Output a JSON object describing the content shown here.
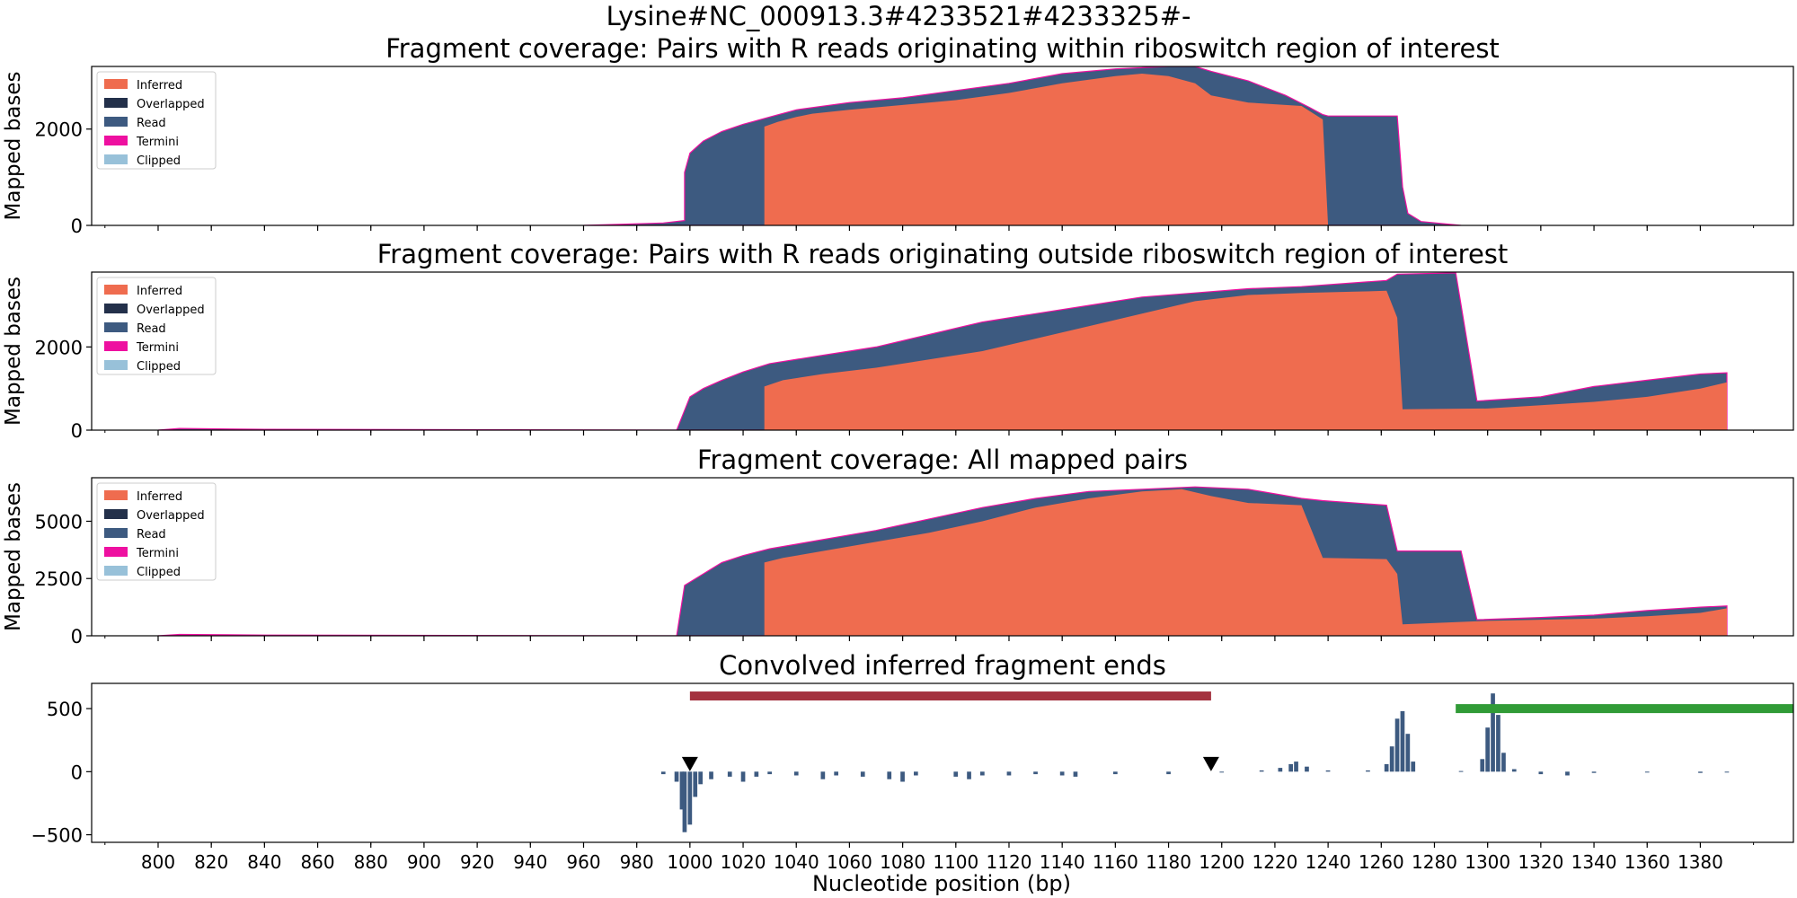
{
  "figure": {
    "suptitle": "Lysine#NC_000913.3#4233521#4233325#-",
    "xlabel": "Nucleotide position (bp)",
    "xlim": [
      775,
      1415
    ],
    "x_ticks": [
      800,
      820,
      840,
      860,
      880,
      900,
      920,
      940,
      960,
      980,
      1000,
      1020,
      1040,
      1060,
      1080,
      1100,
      1120,
      1140,
      1160,
      1180,
      1200,
      1220,
      1240,
      1260,
      1280,
      1300,
      1320,
      1340,
      1360,
      1380
    ]
  },
  "legend": {
    "entries": [
      {
        "label": "Inferred",
        "color": "#ef6c4f"
      },
      {
        "label": "Overlapped",
        "color": "#23304a"
      },
      {
        "label": "Read",
        "color": "#3d5a80"
      },
      {
        "label": "Termini",
        "color": "#ee10a0"
      },
      {
        "label": "Clipped",
        "color": "#98c1d9"
      }
    ]
  },
  "chart_data": [
    {
      "type": "area",
      "title": "Fragment coverage: Pairs with R reads originating within riboswitch region of interest",
      "ylabel": "Mapped bases",
      "ylim": [
        0,
        3300
      ],
      "y_ticks": [
        0,
        2000
      ],
      "series": [
        {
          "name": "Inferred",
          "color": "#ef6c4f",
          "points": [
            [
              1028,
              0
            ],
            [
              1028,
              2050
            ],
            [
              1033,
              2150
            ],
            [
              1040,
              2250
            ],
            [
              1046,
              2320
            ],
            [
              1060,
              2400
            ],
            [
              1080,
              2500
            ],
            [
              1100,
              2600
            ],
            [
              1120,
              2750
            ],
            [
              1140,
              2950
            ],
            [
              1160,
              3100
            ],
            [
              1170,
              3150
            ],
            [
              1180,
              3100
            ],
            [
              1190,
              2950
            ],
            [
              1196,
              2700
            ],
            [
              1210,
              2550
            ],
            [
              1230,
              2480
            ],
            [
              1238,
              2200
            ],
            [
              1240,
              0
            ]
          ]
        },
        {
          "name": "Read",
          "color": "#3d5a80",
          "points": [
            [
              960,
              0
            ],
            [
              990,
              50
            ],
            [
              998,
              100
            ],
            [
              998,
              1100
            ],
            [
              1000,
              1500
            ],
            [
              1005,
              1750
            ],
            [
              1012,
              1950
            ],
            [
              1020,
              2100
            ],
            [
              1030,
              2250
            ],
            [
              1040,
              2400
            ],
            [
              1060,
              2550
            ],
            [
              1080,
              2650
            ],
            [
              1100,
              2800
            ],
            [
              1120,
              2950
            ],
            [
              1140,
              3150
            ],
            [
              1160,
              3250
            ],
            [
              1180,
              3300
            ],
            [
              1190,
              3300
            ],
            [
              1196,
              3200
            ],
            [
              1210,
              3000
            ],
            [
              1224,
              2700
            ],
            [
              1233,
              2450
            ],
            [
              1238,
              2300
            ],
            [
              1240,
              2270
            ],
            [
              1266,
              2270
            ],
            [
              1268,
              800
            ],
            [
              1270,
              250
            ],
            [
              1275,
              80
            ],
            [
              1290,
              0
            ]
          ]
        }
      ]
    },
    {
      "type": "area",
      "title": "Fragment coverage: Pairs with R reads originating outside riboswitch region of interest",
      "ylabel": "Mapped bases",
      "ylim": [
        0,
        3800
      ],
      "y_ticks": [
        0,
        2000
      ],
      "series": [
        {
          "name": "Inferred",
          "color": "#ef6c4f",
          "points": [
            [
              1028,
              0
            ],
            [
              1028,
              1050
            ],
            [
              1035,
              1200
            ],
            [
              1050,
              1350
            ],
            [
              1070,
              1500
            ],
            [
              1090,
              1700
            ],
            [
              1110,
              1900
            ],
            [
              1130,
              2200
            ],
            [
              1150,
              2500
            ],
            [
              1170,
              2800
            ],
            [
              1190,
              3100
            ],
            [
              1210,
              3250
            ],
            [
              1230,
              3300
            ],
            [
              1250,
              3330
            ],
            [
              1262,
              3350
            ],
            [
              1266,
              2700
            ],
            [
              1268,
              500
            ],
            [
              1300,
              520
            ],
            [
              1320,
              600
            ],
            [
              1340,
              680
            ],
            [
              1360,
              800
            ],
            [
              1380,
              1000
            ],
            [
              1390,
              1150
            ],
            [
              1390,
              0
            ]
          ]
        },
        {
          "name": "Read",
          "color": "#3d5a80",
          "points": [
            [
              800,
              0
            ],
            [
              808,
              40
            ],
            [
              840,
              20
            ],
            [
              995,
              0
            ],
            [
              1000,
              800
            ],
            [
              1005,
              1000
            ],
            [
              1012,
              1200
            ],
            [
              1020,
              1400
            ],
            [
              1030,
              1600
            ],
            [
              1050,
              1800
            ],
            [
              1070,
              2000
            ],
            [
              1090,
              2300
            ],
            [
              1110,
              2600
            ],
            [
              1130,
              2800
            ],
            [
              1150,
              3000
            ],
            [
              1170,
              3200
            ],
            [
              1190,
              3300
            ],
            [
              1210,
              3400
            ],
            [
              1230,
              3450
            ],
            [
              1262,
              3600
            ],
            [
              1266,
              3750
            ],
            [
              1288,
              3780
            ],
            [
              1296,
              700
            ],
            [
              1320,
              800
            ],
            [
              1340,
              1050
            ],
            [
              1360,
              1200
            ],
            [
              1380,
              1350
            ],
            [
              1390,
              1380
            ],
            [
              1390,
              0
            ]
          ]
        }
      ]
    },
    {
      "type": "area",
      "title": "Fragment coverage: All mapped pairs",
      "ylabel": "Mapped bases",
      "ylim": [
        0,
        6900
      ],
      "y_ticks": [
        0,
        2500,
        5000
      ],
      "series": [
        {
          "name": "Inferred",
          "color": "#ef6c4f",
          "points": [
            [
              1028,
              0
            ],
            [
              1028,
              3200
            ],
            [
              1035,
              3400
            ],
            [
              1050,
              3700
            ],
            [
              1070,
              4100
            ],
            [
              1090,
              4500
            ],
            [
              1110,
              5000
            ],
            [
              1130,
              5600
            ],
            [
              1150,
              6000
            ],
            [
              1170,
              6300
            ],
            [
              1185,
              6400
            ],
            [
              1196,
              6100
            ],
            [
              1210,
              5800
            ],
            [
              1230,
              5700
            ],
            [
              1238,
              3400
            ],
            [
              1262,
              3350
            ],
            [
              1266,
              2700
            ],
            [
              1268,
              500
            ],
            [
              1300,
              650
            ],
            [
              1320,
              700
            ],
            [
              1340,
              750
            ],
            [
              1360,
              850
            ],
            [
              1380,
              1000
            ],
            [
              1390,
              1200
            ],
            [
              1390,
              0
            ]
          ]
        },
        {
          "name": "Read",
          "color": "#3d5a80",
          "points": [
            [
              800,
              0
            ],
            [
              808,
              60
            ],
            [
              840,
              30
            ],
            [
              995,
              0
            ],
            [
              998,
              2200
            ],
            [
              1005,
              2700
            ],
            [
              1012,
              3200
            ],
            [
              1020,
              3500
            ],
            [
              1030,
              3800
            ],
            [
              1050,
              4200
            ],
            [
              1070,
              4600
            ],
            [
              1090,
              5100
            ],
            [
              1110,
              5600
            ],
            [
              1130,
              6000
            ],
            [
              1150,
              6300
            ],
            [
              1170,
              6400
            ],
            [
              1190,
              6500
            ],
            [
              1210,
              6400
            ],
            [
              1230,
              6000
            ],
            [
              1238,
              5900
            ],
            [
              1262,
              5700
            ],
            [
              1266,
              3700
            ],
            [
              1290,
              3700
            ],
            [
              1296,
              700
            ],
            [
              1320,
              800
            ],
            [
              1340,
              900
            ],
            [
              1360,
              1100
            ],
            [
              1380,
              1250
            ],
            [
              1390,
              1300
            ],
            [
              1390,
              0
            ]
          ]
        }
      ]
    },
    {
      "type": "bar",
      "title": "Convolved inferred fragment ends",
      "ylim": [
        -560,
        700
      ],
      "y_ticks": [
        -500,
        0,
        500
      ],
      "series": [
        {
          "name": "Convolved ends",
          "color": "#3d5a80",
          "points": [
            [
              990,
              -20
            ],
            [
              995,
              -80
            ],
            [
              997,
              -300
            ],
            [
              998,
              -480
            ],
            [
              1000,
              -420
            ],
            [
              1002,
              -200
            ],
            [
              1004,
              -100
            ],
            [
              1008,
              -60
            ],
            [
              1015,
              -40
            ],
            [
              1020,
              -80
            ],
            [
              1025,
              -40
            ],
            [
              1030,
              -20
            ],
            [
              1040,
              -30
            ],
            [
              1050,
              -60
            ],
            [
              1055,
              -30
            ],
            [
              1065,
              -40
            ],
            [
              1075,
              -60
            ],
            [
              1080,
              -80
            ],
            [
              1085,
              -30
            ],
            [
              1100,
              -40
            ],
            [
              1105,
              -60
            ],
            [
              1110,
              -30
            ],
            [
              1120,
              -30
            ],
            [
              1130,
              -20
            ],
            [
              1140,
              -30
            ],
            [
              1145,
              -40
            ],
            [
              1160,
              -20
            ],
            [
              1180,
              -20
            ],
            [
              1200,
              0
            ],
            [
              1215,
              10
            ],
            [
              1222,
              30
            ],
            [
              1226,
              60
            ],
            [
              1228,
              80
            ],
            [
              1232,
              40
            ],
            [
              1240,
              10
            ],
            [
              1255,
              10
            ],
            [
              1262,
              60
            ],
            [
              1264,
              200
            ],
            [
              1266,
              420
            ],
            [
              1268,
              480
            ],
            [
              1270,
              300
            ],
            [
              1272,
              80
            ],
            [
              1290,
              5
            ],
            [
              1298,
              100
            ],
            [
              1300,
              350
            ],
            [
              1302,
              620
            ],
            [
              1304,
              450
            ],
            [
              1306,
              150
            ],
            [
              1310,
              20
            ],
            [
              1320,
              -20
            ],
            [
              1330,
              -30
            ],
            [
              1340,
              -10
            ],
            [
              1360,
              -5
            ],
            [
              1380,
              -10
            ],
            [
              1390,
              -5
            ]
          ]
        }
      ],
      "region_bars": [
        {
          "color": "#a4323f",
          "x": [
            1000,
            1196
          ],
          "y": 600
        },
        {
          "color": "#319b37",
          "x": [
            1288,
            1415
          ],
          "y": 500
        }
      ],
      "markers": [
        {
          "x": 1000,
          "y": 60,
          "shape": "triangle-down",
          "color": "#000000"
        },
        {
          "x": 1196,
          "y": 60,
          "shape": "triangle-down",
          "color": "#000000"
        }
      ]
    }
  ]
}
